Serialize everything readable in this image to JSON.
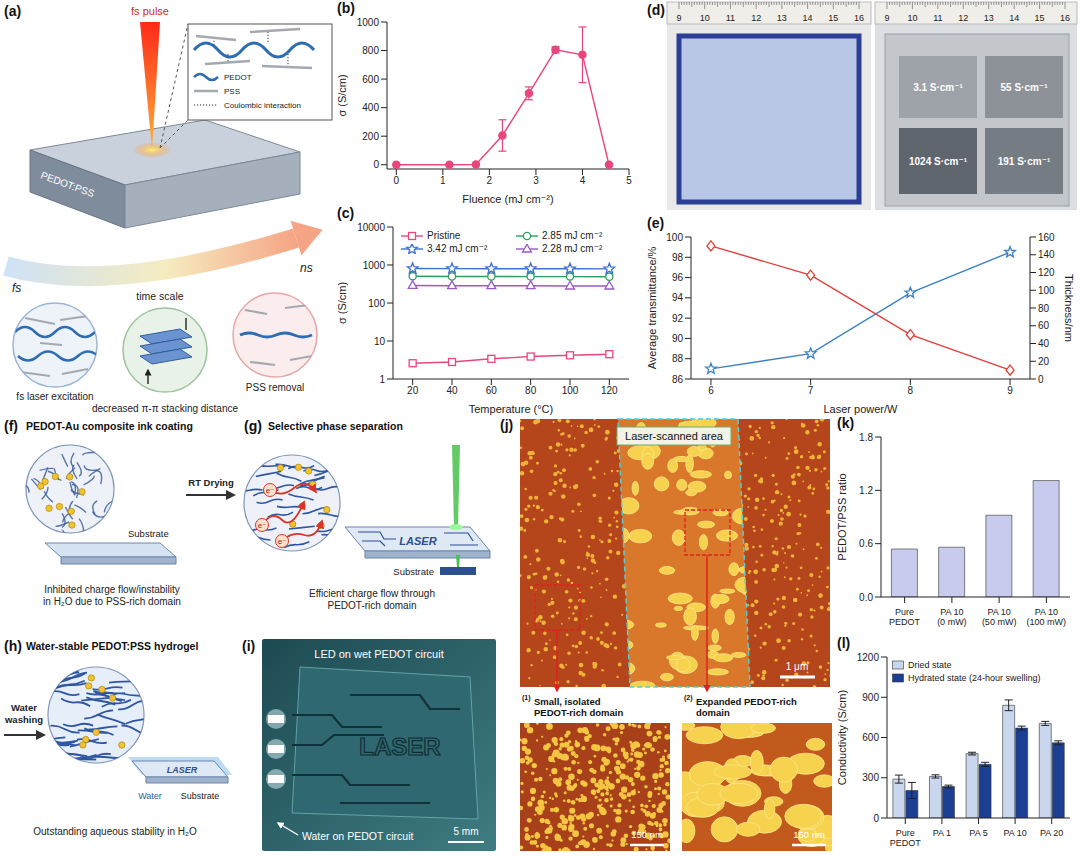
{
  "panels": {
    "a": {
      "label": "(a)",
      "beam": "fs pulse",
      "sample": "PEDOT:PSS",
      "inset_legend": [
        "PEDOT",
        "PSS",
        "Coulombic interaction"
      ],
      "time_scale": {
        "start": "fs",
        "end": "ns",
        "label": "time scale"
      },
      "steps": [
        "fs laser excitation",
        "decreased π-π stacking distance",
        "PSS removal"
      ]
    },
    "d": {
      "label": "(d)",
      "ruler": [
        9,
        10,
        11,
        12,
        13,
        14,
        15,
        16
      ],
      "conductivities": [
        "3.1 S·cm⁻¹",
        "55 S·cm⁻¹",
        "1024 S·cm⁻¹",
        "191 S·cm⁻¹"
      ]
    },
    "f": {
      "label": "(f)",
      "title": "PEDOT-Au composite ink coating",
      "substrate": "Substrate",
      "caption": "Inhibited charge flow/instability in H₂O due to PSS-rich domain"
    },
    "f_to_g": "RT Drying",
    "g": {
      "label": "(g)",
      "title": "Selective phase separation",
      "charge": "e⁻",
      "circuit_text": "LASER",
      "substrate": "Substrate",
      "caption": "Efficient charge flow through PEDOT-rich domain"
    },
    "g_to_h": "Water washing",
    "h": {
      "label": "(h)",
      "title": "Water-stable PEDOT:PSS hydrogel",
      "circuit_text": "LASER",
      "water": "Water",
      "substrate": "Substrate",
      "caption": "Outstanding aqueous stability in H₂O"
    },
    "i": {
      "label": "(i)",
      "top_text": "LED on wet PEDOT circuit",
      "bottom_text": "Water on PEDOT circuit",
      "circuit_text": "LASER",
      "scale": "5 mm"
    },
    "j": {
      "label": "(j)",
      "title": "Laser-scanned area",
      "scale": "1 μm",
      "insets": [
        {
          "number": "(1)",
          "caption": "Small, isolated PEDOT-rich domain",
          "scale": "150 nm"
        },
        {
          "number": "(2)",
          "caption": "Expanded PEDOT-rich domain",
          "scale": "150 nm"
        }
      ]
    }
  },
  "chart_data": [
    {
      "label": "(b)",
      "type": "line",
      "x_label": "Fluence (mJ cm⁻²)",
      "y_label": "σ (S/cm)",
      "x": [
        0,
        1.14,
        1.71,
        2.28,
        2.85,
        3.42,
        4.0,
        4.57
      ],
      "values": [
        0,
        0,
        2,
        205,
        500,
        805,
        770,
        0
      ],
      "errors": [
        0,
        0,
        0,
        110,
        45,
        22,
        195,
        0
      ],
      "color": "#e8467c",
      "marker": "circle",
      "xlim": [
        -0.2,
        5
      ],
      "ylim": [
        -30,
        1000
      ],
      "xticks": [
        0,
        1,
        2,
        3,
        4,
        5
      ],
      "yticks": [
        0,
        200,
        400,
        600,
        800,
        1000
      ]
    },
    {
      "label": "(c)",
      "type": "line",
      "log": "y",
      "x_label": "Temperature (°C)",
      "y_label": "σ (S/cm)",
      "x": [
        20,
        40,
        60,
        80,
        100,
        120
      ],
      "series": [
        {
          "name": "Pristine",
          "color": "#e8467c",
          "marker": "open_square",
          "values": [
            2.6,
            2.8,
            3.4,
            3.9,
            4.2,
            4.5
          ]
        },
        {
          "name": "2.85 mJ cm⁻²",
          "color": "#2ca05a",
          "marker": "open_circle",
          "values": [
            505,
            500,
            500,
            495,
            495,
            490
          ]
        },
        {
          "name": "3.42 mJ cm⁻²",
          "color": "#3f6fd1",
          "marker": "open_star",
          "values": [
            810,
            805,
            800,
            800,
            795,
            790
          ]
        },
        {
          "name": "2.28 mJ cm⁻²",
          "color": "#9b59c6",
          "marker": "open_triangle",
          "values": [
            290,
            285,
            285,
            285,
            280,
            280
          ]
        }
      ],
      "xlim": [
        10,
        130
      ],
      "ylim": [
        1,
        10000
      ],
      "xticks": [
        20,
        40,
        60,
        80,
        100,
        120
      ],
      "yticks": [
        1,
        10,
        100,
        1000,
        10000
      ],
      "legend": "top"
    },
    {
      "label": "(e)",
      "type": "line",
      "x_label": "Laser power/W",
      "y_label": "Average transmittance/%",
      "y2_label": "Thickness/nm",
      "x": [
        6,
        7,
        8,
        9
      ],
      "series": [
        {
          "color": "#3b82c4",
          "marker": "open_star",
          "values": [
            87,
            88.5,
            94.5,
            98.5
          ]
        },
        {
          "color": "#e0403a",
          "marker": "open_diamond",
          "axis": "y2",
          "values": [
            150,
            117,
            50,
            10
          ]
        }
      ],
      "xlim": [
        5.8,
        9.2
      ],
      "ylim": [
        86,
        100
      ],
      "xticks": [
        6,
        7,
        8,
        9
      ],
      "yticks": [
        86,
        88,
        90,
        92,
        94,
        96,
        98,
        100
      ],
      "y2lim": [
        0,
        160
      ],
      "y2ticks": [
        0,
        20,
        40,
        60,
        80,
        100,
        120,
        140,
        160
      ]
    },
    {
      "label": "(k)",
      "type": "bar",
      "y_label": "PEDOT/PSS ratio",
      "categories": [
        "Pure PEDOT",
        "PA 10 (0 mW)",
        "PA 10 (50 mW)",
        "PA 10 (100 mW)"
      ],
      "values": [
        0.54,
        0.56,
        0.92,
        1.31
      ],
      "color": "#c8cbed",
      "ylim": [
        0,
        1.8
      ],
      "yticks": [
        {
          "value": 0,
          "label": "0.0"
        },
        0.6,
        1.2,
        1.8
      ]
    },
    {
      "label": "(l)",
      "type": "bar",
      "y_label": "Conductivity (S/cm)",
      "categories": [
        "Pure PEDOT",
        "PA 1",
        "PA 5",
        "PA 10",
        "PA 20"
      ],
      "series": [
        {
          "name": "Dried state",
          "color": "#c9d7ee",
          "values": [
            290,
            310,
            480,
            840,
            705
          ],
          "errors": [
            30,
            12,
            10,
            40,
            15
          ]
        },
        {
          "name": "Hydrated state (24-hour swelling)",
          "color": "#1c3f94",
          "values": [
            205,
            235,
            400,
            670,
            560
          ],
          "errors": [
            60,
            10,
            15,
            15,
            15
          ]
        }
      ],
      "ylim": [
        0,
        1200
      ],
      "yticks": [
        0,
        300,
        600,
        900,
        1200
      ],
      "legend": "top-left"
    }
  ]
}
